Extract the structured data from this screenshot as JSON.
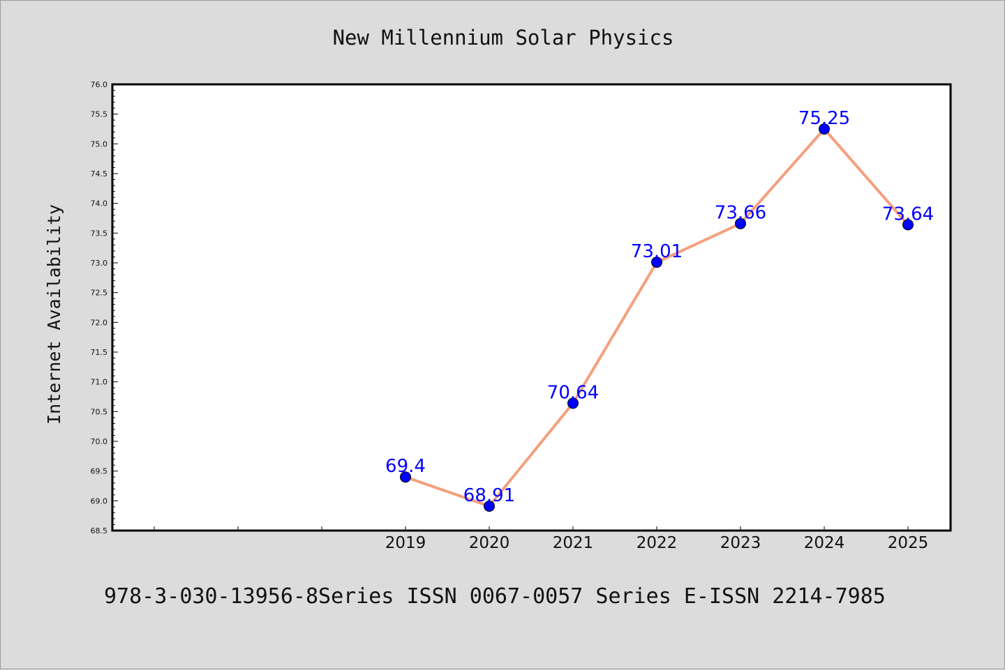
{
  "chart_data": {
    "type": "line",
    "title": "New Millennium Solar Physics",
    "xlabel": "",
    "ylabel": "Internet Availability",
    "categories": [
      "2019",
      "2020",
      "2021",
      "2022",
      "2023",
      "2024",
      "2025"
    ],
    "series": [
      {
        "values": [
          69.4,
          68.91,
          70.64,
          73.01,
          73.66,
          75.25,
          73.64
        ],
        "data_labels": [
          "69.4",
          "68.91",
          "70.64",
          "73.01",
          "73.66",
          "75.25",
          "73.64"
        ]
      }
    ],
    "ylim": [
      68.5,
      76.0
    ],
    "y_major_ticks": [
      "68.5",
      "69.0",
      "69.5",
      "70.0",
      "70.5",
      "71.0",
      "71.5",
      "72.0",
      "72.5",
      "73.0",
      "73.5",
      "74.0",
      "74.5",
      "75.0",
      "75.5",
      "76.0"
    ],
    "grid": false,
    "legend": "none",
    "colors": {
      "line": "#f4a07e",
      "marker": "#0000ff",
      "data_label": "#0000ff",
      "plot_background": "#ffffff",
      "figure_background": "#dcdcdc"
    }
  },
  "footer": {
    "text": "978-3-030-13956-8Series ISSN 0067-0057 Series E-ISSN 2214-7985"
  }
}
